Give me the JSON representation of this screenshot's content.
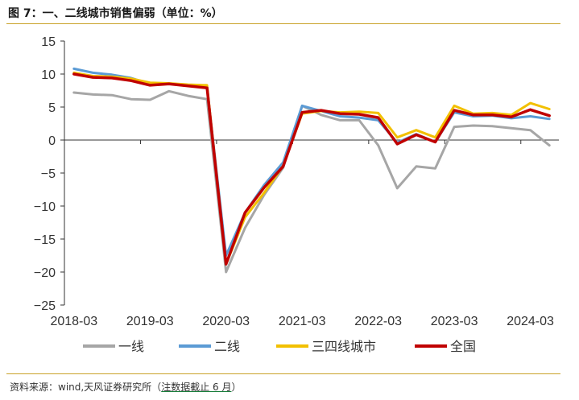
{
  "header": {
    "title": "图 7：一、二线城市销售偏弱（单位：%）"
  },
  "footer": {
    "source_prefix": "资料来源：wind,天风证券研究所（",
    "source_note": "注数据截止 6 月",
    "source_suffix": "）"
  },
  "chart_data": {
    "type": "line",
    "title": "图 7：一、二线城市销售偏弱（单位：%）",
    "xlabel": "",
    "ylabel": "",
    "ylim": [
      -25,
      15
    ],
    "yticks": [
      15,
      10,
      5,
      0,
      -5,
      -10,
      -15,
      -20,
      -25
    ],
    "yticklabels": [
      "15",
      "10",
      "5",
      "0",
      "−5",
      "−10",
      "−15",
      "−20",
      "−25"
    ],
    "xticklabels": [
      "2018-03",
      "2019-03",
      "2020-03",
      "2021-03",
      "2022-03",
      "2023-03",
      "2024-03"
    ],
    "x": [
      "2018-03",
      "2018-06",
      "2018-09",
      "2018-12",
      "2019-03",
      "2019-06",
      "2019-09",
      "2019-12",
      "2020-03",
      "2020-06",
      "2020-09",
      "2020-12",
      "2021-03",
      "2021-06",
      "2021-09",
      "2021-12",
      "2022-03",
      "2022-06",
      "2022-09",
      "2022-12",
      "2023-03",
      "2023-06",
      "2023-09",
      "2023-12",
      "2024-03",
      "2024-06"
    ],
    "grid": false,
    "legend_position": "bottom",
    "colors": {
      "axis": "#333333",
      "title_rule": "#c9a227"
    },
    "series": [
      {
        "name": "一线",
        "color": "#a6a6a6",
        "values": [
          7.2,
          6.9,
          6.8,
          6.2,
          6.1,
          7.4,
          6.7,
          6.2,
          -20.0,
          -13.3,
          -8.3,
          -4.2,
          5.2,
          3.8,
          3.0,
          3.0,
          -0.8,
          -7.3,
          -4.0,
          -4.3,
          2.0,
          2.2,
          2.1,
          1.8,
          1.5,
          -0.8
        ]
      },
      {
        "name": "二线",
        "color": "#5b9bd5",
        "values": [
          10.8,
          10.2,
          9.9,
          9.4,
          8.5,
          8.5,
          8.3,
          8.0,
          -17.5,
          -11.0,
          -6.8,
          -3.4,
          5.2,
          4.4,
          3.6,
          3.4,
          3.0,
          -0.4,
          0.9,
          -0.3,
          4.2,
          3.6,
          3.7,
          3.3,
          3.6,
          3.2
        ]
      },
      {
        "name": "三四线城市",
        "color": "#f2c000",
        "values": [
          10.2,
          9.7,
          9.6,
          9.3,
          8.7,
          8.6,
          8.4,
          8.3,
          -18.8,
          -11.7,
          -8.0,
          -3.9,
          4.0,
          4.4,
          4.2,
          4.3,
          4.1,
          0.4,
          1.5,
          0.4,
          5.2,
          4.0,
          4.1,
          3.8,
          5.6,
          4.7
        ]
      },
      {
        "name": "全国",
        "color": "#c00000",
        "values": [
          10.0,
          9.5,
          9.4,
          9.0,
          8.3,
          8.5,
          8.2,
          7.9,
          -18.8,
          -11.0,
          -7.2,
          -4.0,
          4.2,
          4.5,
          4.0,
          3.9,
          3.4,
          -0.6,
          0.8,
          -0.3,
          4.5,
          3.8,
          3.8,
          3.5,
          4.6,
          3.7
        ]
      }
    ]
  }
}
